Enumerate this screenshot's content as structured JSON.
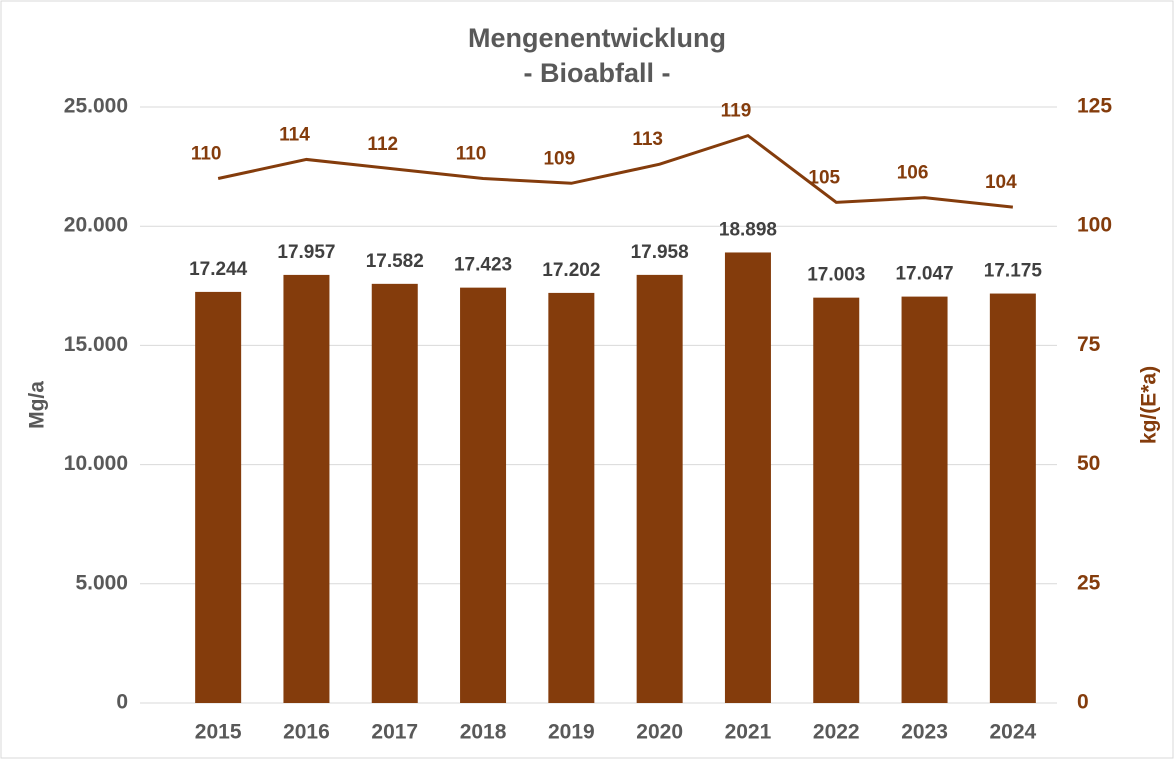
{
  "chart_data": {
    "type": "bar",
    "title": "Mengenentwicklung",
    "subtitle": "- Bioabfall -",
    "y_label": "Mg/a",
    "y2_label": "kg/(E*a)",
    "categories": [
      "2015",
      "2016",
      "2017",
      "2018",
      "2019",
      "2020",
      "2021",
      "2022",
      "2023",
      "2024"
    ],
    "series": [
      {
        "type": "bar",
        "color": "#843c0c",
        "values": [
          17244,
          17957,
          17582,
          17423,
          17202,
          17958,
          18898,
          17003,
          17047,
          17175
        ],
        "value_labels": [
          "17.244",
          "17.957",
          "17.582",
          "17.423",
          "17.202",
          "17.958",
          "18.898",
          "17.003",
          "17.047",
          "17.175"
        ]
      },
      {
        "type": "line",
        "axis": "y2",
        "color": "#843c0c",
        "values": [
          110,
          114,
          112,
          110,
          109,
          113,
          119,
          105,
          106,
          104
        ]
      }
    ],
    "ylim": [
      0,
      25000
    ],
    "yticks": [
      0,
      {
        "value": 5000,
        "label": "5.000"
      },
      {
        "value": 10000,
        "label": "10.000"
      },
      {
        "value": 15000,
        "label": "15.000"
      },
      {
        "value": 20000,
        "label": "20.000"
      },
      {
        "value": 25000,
        "label": "25.000"
      }
    ],
    "y2lim": [
      0,
      125
    ],
    "y2ticks": [
      0,
      25,
      50,
      75,
      100,
      125
    ],
    "grid": true
  }
}
